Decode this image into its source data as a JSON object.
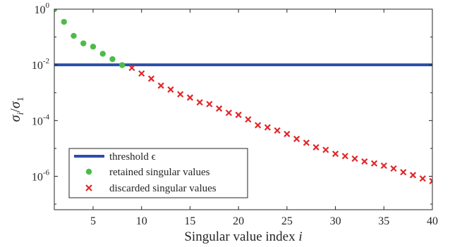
{
  "chart_data": {
    "type": "scatter",
    "xlabel": "Singular value index i",
    "ylabel": "σi/σ1",
    "xlim": [
      1,
      40
    ],
    "ylim_log10": [
      -7.2,
      0
    ],
    "yscale": "log",
    "grid": false,
    "legend_position": "bottom-left",
    "x_ticks": [
      5,
      10,
      15,
      20,
      25,
      30,
      35,
      40
    ],
    "x_tick_labels": [
      "5",
      "10",
      "15",
      "20",
      "25",
      "30",
      "35",
      "40"
    ],
    "y_ticks_log10": [
      0,
      -2,
      -4,
      -6
    ],
    "y_tick_labels": [
      {
        "base": "10",
        "exp": "0"
      },
      {
        "base": "10",
        "exp": "-2"
      },
      {
        "base": "10",
        "exp": "-4"
      },
      {
        "base": "10",
        "exp": "-6"
      }
    ],
    "threshold": {
      "name": "threshold ϵ",
      "value": 0.01,
      "color": "#2b4fa8"
    },
    "series": [
      {
        "name": "retained singular values",
        "marker": "circle",
        "color": "#4dbb4a",
        "x": [
          1,
          2,
          3,
          4,
          5,
          6,
          7,
          8
        ],
        "y": [
          1.0,
          0.35,
          0.11,
          0.059,
          0.045,
          0.025,
          0.016,
          0.0098
        ]
      },
      {
        "name": "discarded singular values",
        "marker": "x",
        "color": "#e0282a",
        "x": [
          9,
          10,
          11,
          12,
          13,
          14,
          15,
          16,
          17,
          18,
          19,
          20,
          21,
          22,
          23,
          24,
          25,
          26,
          27,
          28,
          29,
          30,
          31,
          32,
          33,
          34,
          35,
          36,
          37,
          38,
          39,
          40
        ],
        "y": [
          0.0078,
          0.0049,
          0.0032,
          0.0018,
          0.0013,
          0.00088,
          0.00067,
          0.00045,
          0.00039,
          0.00027,
          0.00019,
          0.00016,
          0.00011,
          6.8e-05,
          5.7e-05,
          4.4e-05,
          3.3e-05,
          2.2e-05,
          1.6e-05,
          1.1e-05,
          8.9e-06,
          6.4e-06,
          5.3e-06,
          4.3e-06,
          3.4e-06,
          2.9e-06,
          2.4e-06,
          1.9e-06,
          1.4e-06,
          1.1e-06,
          8.3e-07,
          6.7e-07
        ]
      }
    ]
  }
}
